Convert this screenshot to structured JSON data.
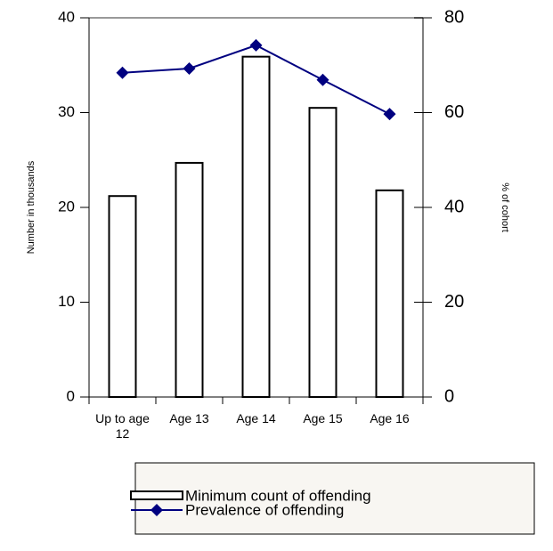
{
  "chart_data": {
    "type": "bar-line",
    "categories": [
      "Up to age 12",
      "Age 13",
      "Age 14",
      "Age 15",
      "Age 16"
    ],
    "ylabel": "Number in thousands",
    "y2label": "% of cohort",
    "ylim": [
      0,
      40
    ],
    "yticks": [
      0,
      10,
      20,
      30,
      40
    ],
    "y2lim": [
      0,
      80
    ],
    "y2ticks": [
      0,
      20,
      40,
      60,
      80
    ],
    "series": [
      {
        "name": "Minimum count of offending",
        "type": "bar",
        "color": "#ffffff",
        "values": [
          21.2,
          24.7,
          35.9,
          30.5,
          21.8
        ]
      },
      {
        "name": "Prevalence of offending",
        "type": "line",
        "axis": "y2",
        "color": "#000080",
        "values": [
          68.4,
          69.3,
          74.2,
          66.9,
          59.7
        ]
      }
    ]
  }
}
